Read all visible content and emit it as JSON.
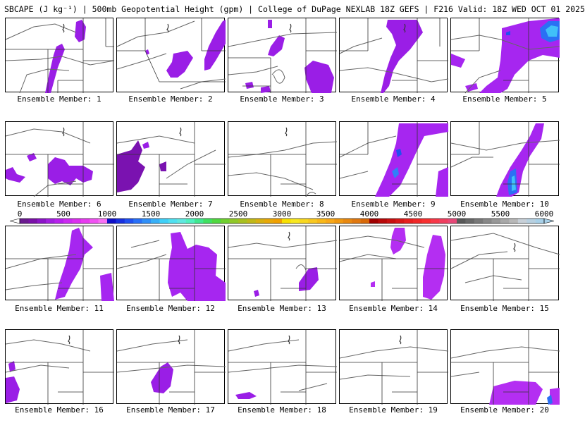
{
  "header": {
    "title": "SBCAPE (J kg⁻¹) | 500mb Geopotential Height (gpm) | College of DuPage NEXLAB 18Z GEFS | F216 Valid: 18Z WED OCT 01 2025"
  },
  "colorbar": {
    "ticks": [
      "0",
      "500",
      "1000",
      "1500",
      "2000",
      "2500",
      "3000",
      "3500",
      "4000",
      "4500",
      "5000",
      "5500",
      "6000"
    ],
    "colors": [
      "#6a1a8f",
      "#7a10a8",
      "#8c14c8",
      "#a21ee0",
      "#b820ee",
      "#cc2af2",
      "#dc30f0",
      "#e83cf0",
      "#f052f2",
      "#f870f4",
      "#1010c8",
      "#1830e0",
      "#2050f0",
      "#2870f8",
      "#3090f8",
      "#38b0f8",
      "#40d0f8",
      "#50e0f0",
      "#60e8e0",
      "#50f0c0",
      "#40e890",
      "#40e060",
      "#50d840",
      "#70d030",
      "#90c828",
      "#a8c020",
      "#c0b818",
      "#d8b010",
      "#e8a808",
      "#f0a000",
      "#f8e000",
      "#f8e820",
      "#f8d820",
      "#f8c820",
      "#f8b818",
      "#f8a818",
      "#f09810",
      "#e88810",
      "#e07810",
      "#d86808",
      "#a00000",
      "#b80808",
      "#c81010",
      "#d81818",
      "#e82020",
      "#f02828",
      "#f83030",
      "#f83848",
      "#f04060",
      "#e84878",
      "#585858",
      "#686868",
      "#787878",
      "#888888",
      "#989898",
      "#a8a8a8",
      "#b8b8b8",
      "#c8d0d8",
      "#b8d0e0",
      "#a8d0e8"
    ]
  },
  "members": [
    {
      "label": "Ensemble Member: 1"
    },
    {
      "label": "Ensemble Member: 2"
    },
    {
      "label": "Ensemble Member: 3"
    },
    {
      "label": "Ensemble Member: 4"
    },
    {
      "label": "Ensemble Member: 5"
    },
    {
      "label": "Ensemble Member: 6"
    },
    {
      "label": "Ensemble Member: 7"
    },
    {
      "label": "Ensemble Member: 8"
    },
    {
      "label": "Ensemble Member: 9"
    },
    {
      "label": "Ensemble Member: 10"
    },
    {
      "label": "Ensemble Member: 11"
    },
    {
      "label": "Ensemble Member: 12"
    },
    {
      "label": "Ensemble Member: 13"
    },
    {
      "label": "Ensemble Member: 14"
    },
    {
      "label": "Ensemble Member: 15"
    },
    {
      "label": "Ensemble Member: 16"
    },
    {
      "label": "Ensemble Member: 17"
    },
    {
      "label": "Ensemble Member: 18"
    },
    {
      "label": "Ensemble Member: 19"
    },
    {
      "label": "Ensemble Member: 20"
    }
  ]
}
